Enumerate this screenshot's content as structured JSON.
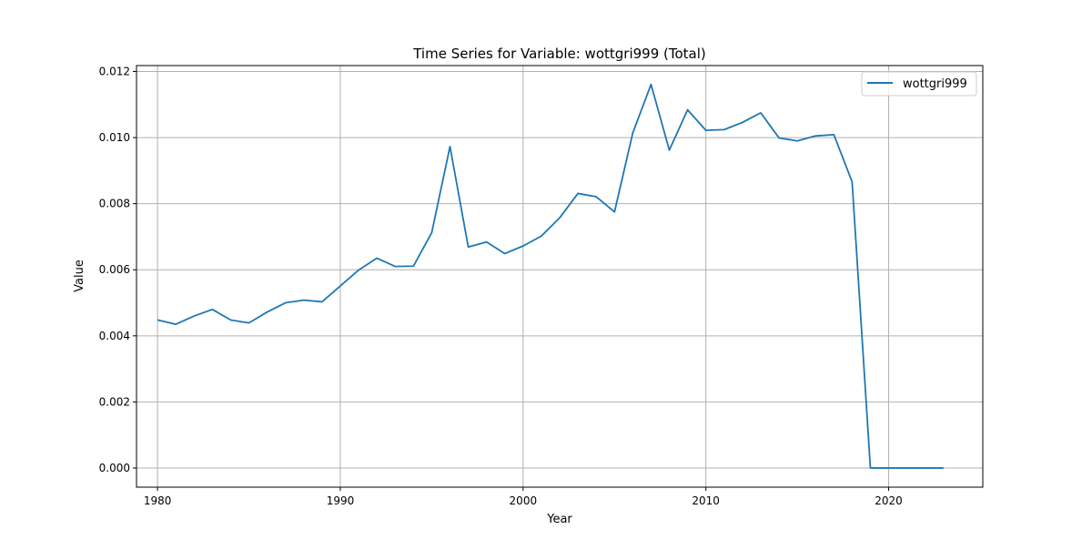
{
  "chart_data": {
    "type": "line",
    "title": "Time Series for Variable: wottgri999 (Total)",
    "xlabel": "Year",
    "ylabel": "Value",
    "xlim": [
      1978.85,
      1980.0
    ],
    "xlim_full": [
      1978.85,
      2025.15
    ],
    "ylim": [
      -0.00058,
      0.01218
    ],
    "grid": true,
    "legend_position": "top-right",
    "x_ticks": [
      1980,
      1990,
      2000,
      2010,
      2020
    ],
    "y_ticks": [
      0.0,
      0.002,
      0.004,
      0.006,
      0.008,
      0.01,
      0.012
    ],
    "y_tick_labels": [
      "0.000",
      "0.002",
      "0.004",
      "0.006",
      "0.008",
      "0.010",
      "0.012"
    ],
    "series": [
      {
        "name": "wottgri999",
        "color": "#1f77b4",
        "x": [
          1980,
          1981,
          1982,
          1983,
          1984,
          1985,
          1986,
          1987,
          1988,
          1989,
          1990,
          1991,
          1992,
          1993,
          1994,
          1995,
          1996,
          1997,
          1998,
          1999,
          2000,
          2001,
          2002,
          2003,
          2004,
          2005,
          2006,
          2007,
          2008,
          2009,
          2010,
          2011,
          2012,
          2013,
          2014,
          2015,
          2016,
          2017,
          2018,
          2019,
          2020,
          2021,
          2022,
          2023
        ],
        "values": [
          0.00448,
          0.00435,
          0.0046,
          0.0048,
          0.00448,
          0.00439,
          0.00472,
          0.005,
          0.00508,
          0.00503,
          0.00551,
          0.00599,
          0.00635,
          0.0061,
          0.00611,
          0.00712,
          0.00973,
          0.00669,
          0.00684,
          0.00649,
          0.00672,
          0.00702,
          0.00757,
          0.00831,
          0.00821,
          0.00775,
          0.01014,
          0.01161,
          0.00962,
          0.01084,
          0.01022,
          0.01024,
          0.01046,
          0.01075,
          0.00999,
          0.0099,
          0.01005,
          0.01009,
          0.00866,
          0.0,
          0.0,
          0.0,
          0.0,
          0.0
        ]
      }
    ]
  }
}
